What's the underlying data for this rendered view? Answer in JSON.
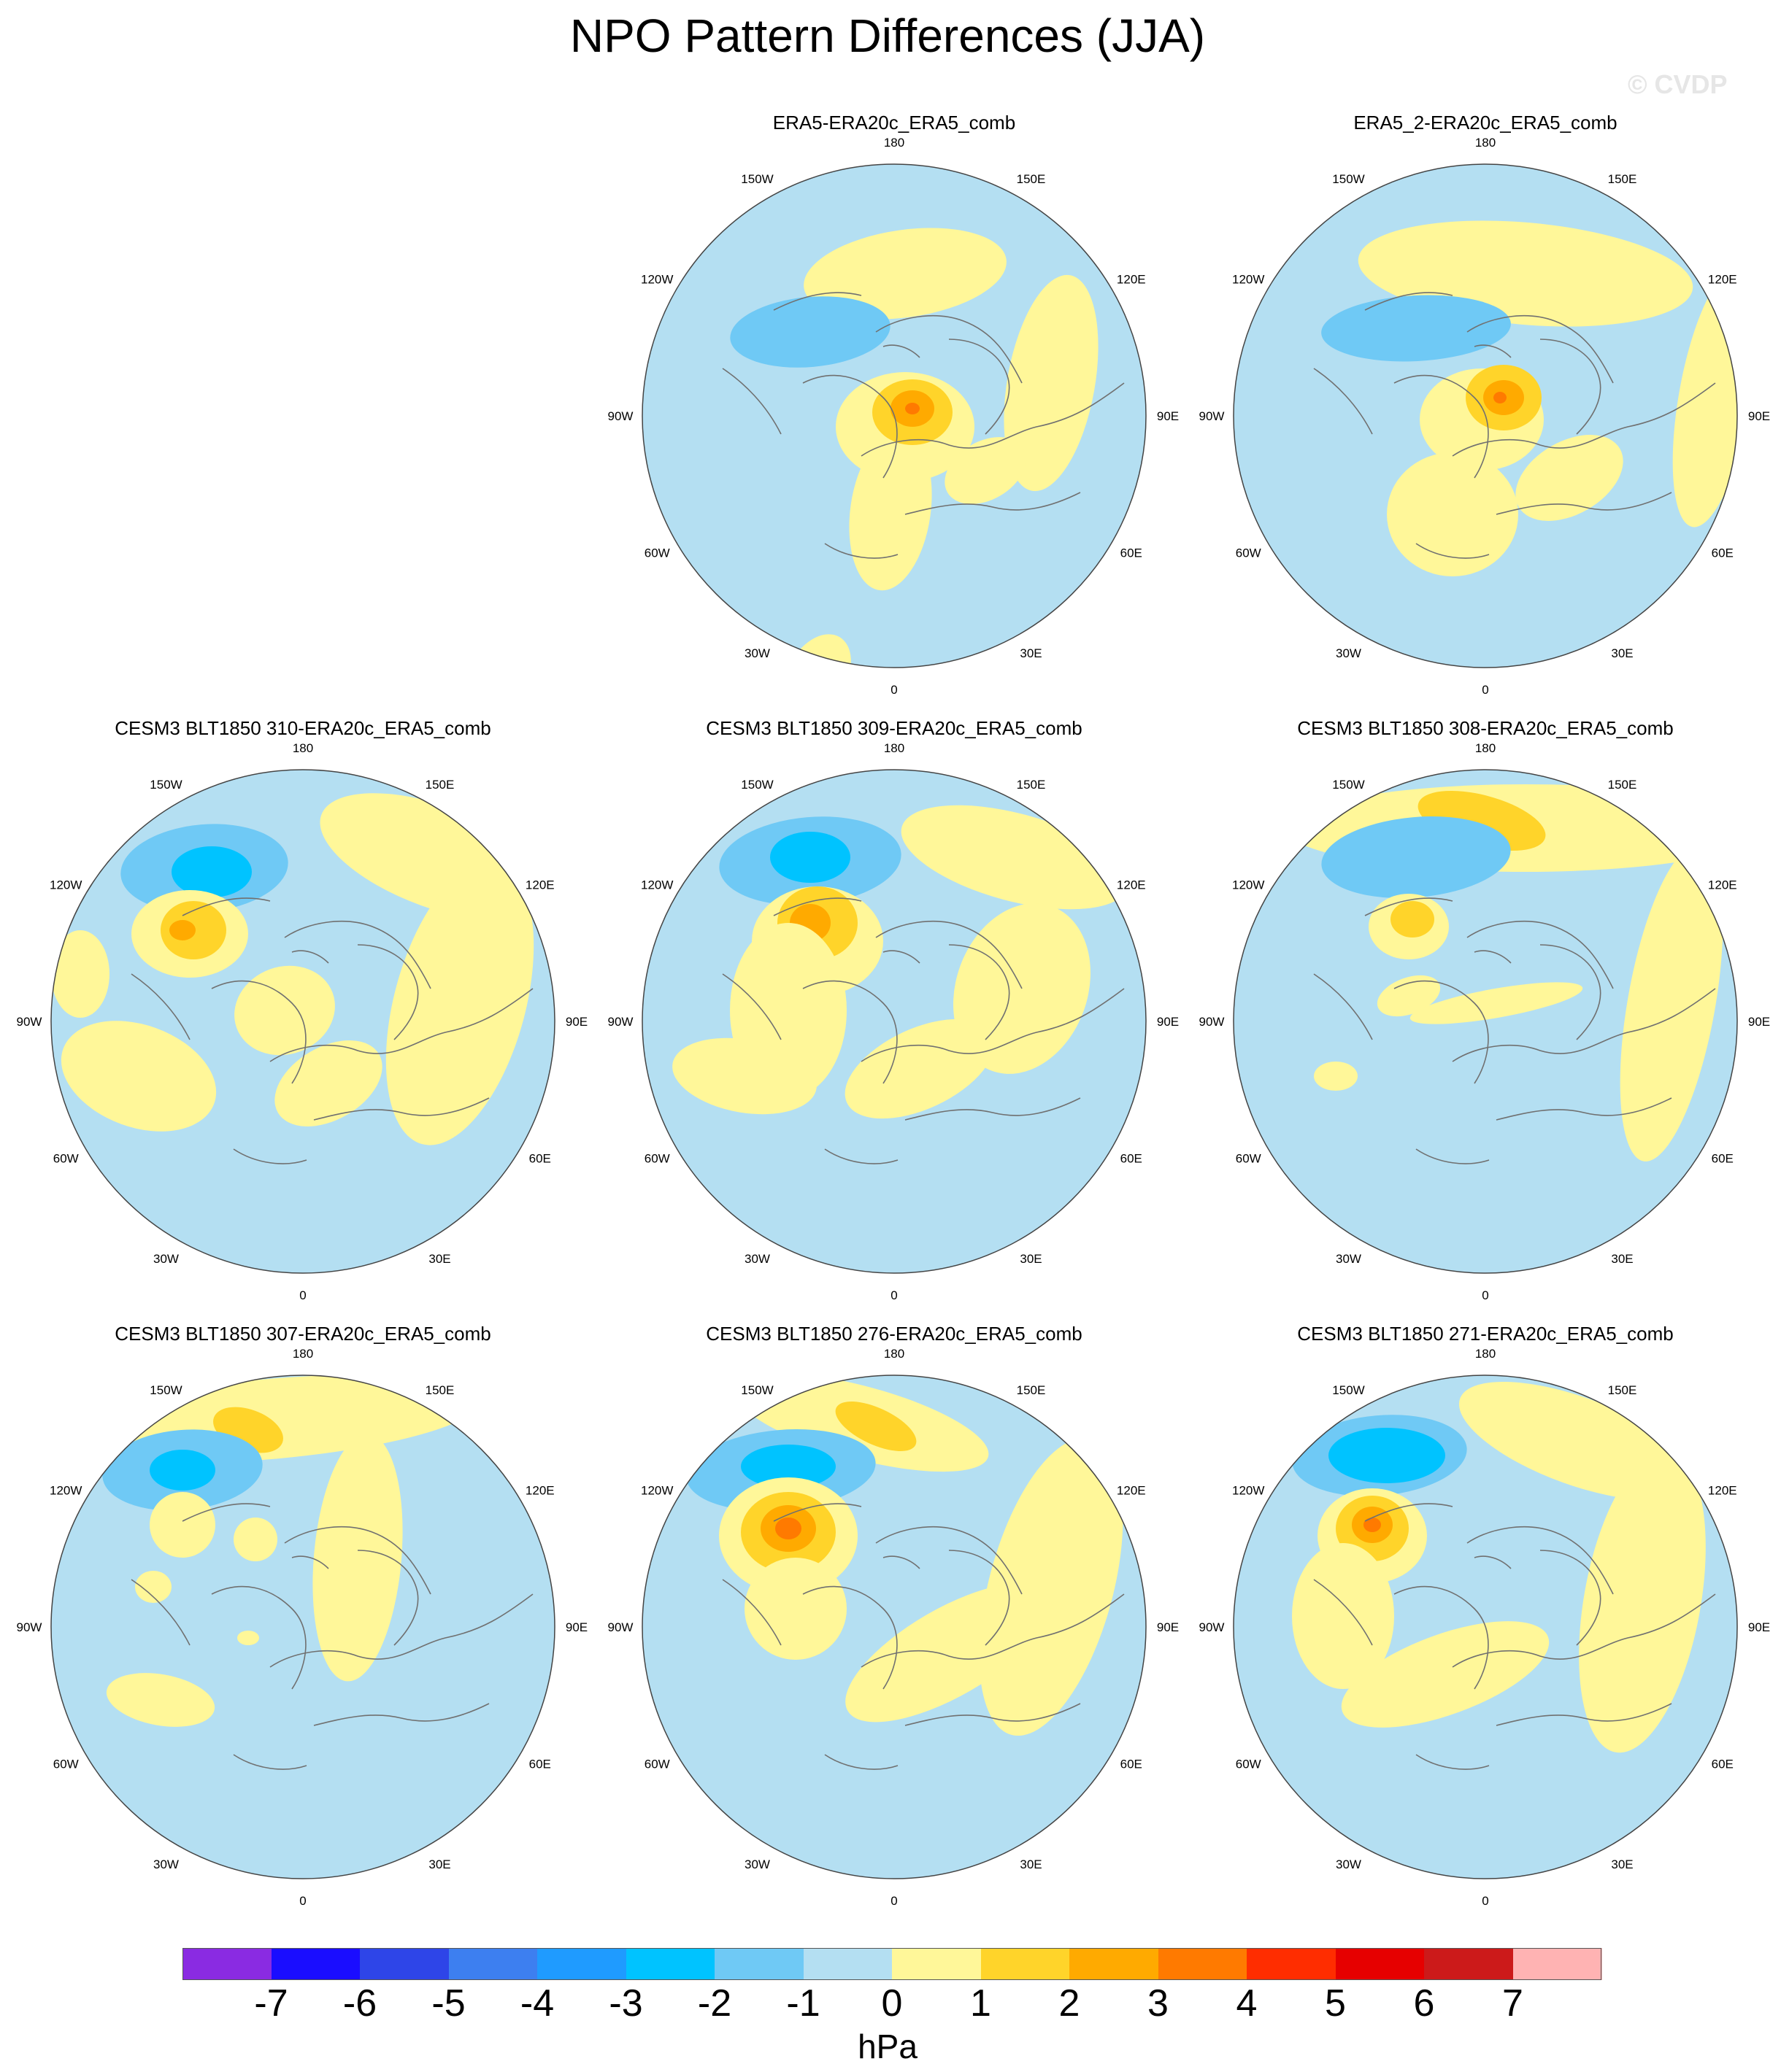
{
  "title": "NPO Pattern Differences (JJA)",
  "watermark": "© CVDP",
  "panels": [
    {
      "title": "ERA5-ERA20c_ERA5_comb",
      "slot": 1
    },
    {
      "title": "ERA5_2-ERA20c_ERA5_comb",
      "slot": 2
    },
    {
      "title": "CESM3 BLT1850 310-ERA20c_ERA5_comb",
      "slot": 3
    },
    {
      "title": "CESM3 BLT1850 309-ERA20c_ERA5_comb",
      "slot": 4
    },
    {
      "title": "CESM3 BLT1850 308-ERA20c_ERA5_comb",
      "slot": 5
    },
    {
      "title": "CESM3 BLT1850 307-ERA20c_ERA5_comb",
      "slot": 6
    },
    {
      "title": "CESM3 BLT1850 276-ERA20c_ERA5_comb",
      "slot": 7
    },
    {
      "title": "CESM3 BLT1850 271-ERA20c_ERA5_comb",
      "slot": 8
    }
  ],
  "map_labels": [
    "180",
    "150E",
    "120E",
    "90E",
    "60E",
    "30E",
    "0",
    "30W",
    "60W",
    "90W",
    "120W",
    "150W"
  ],
  "colorbar": {
    "labels": [
      "-7",
      "-6",
      "-5",
      "-4",
      "-3",
      "-2",
      "-1",
      "0",
      "1",
      "2",
      "3",
      "4",
      "5",
      "6",
      "7"
    ],
    "colors": [
      "#8a2be2",
      "#1a0dff",
      "#2e45e8",
      "#3d7ff0",
      "#1f9bff",
      "#00c3ff",
      "#6fc9f5",
      "#b4dff2",
      "#fff799",
      "#ffd42a",
      "#ffaa00",
      "#ff7a00",
      "#ff2d00",
      "#e60000",
      "#cc1a1a",
      "#ffb3b3"
    ],
    "units": "hPa"
  }
}
